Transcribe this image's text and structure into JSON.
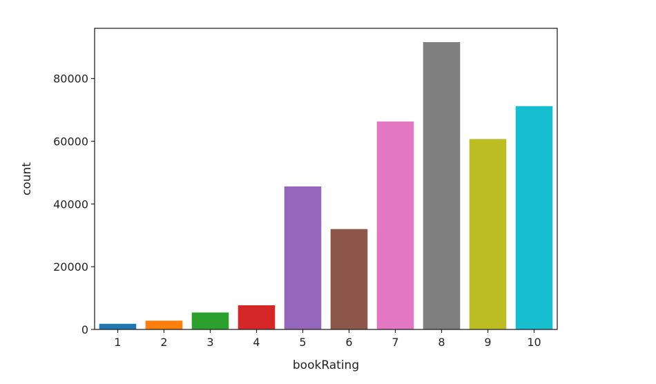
{
  "chart_data": {
    "type": "bar",
    "categories": [
      "1",
      "2",
      "3",
      "4",
      "5",
      "6",
      "7",
      "8",
      "9",
      "10"
    ],
    "values": [
      1800,
      2800,
      5400,
      7700,
      45600,
      32000,
      66300,
      91600,
      60700,
      71200
    ],
    "colors": [
      "#1f77b4",
      "#ff7f0e",
      "#2ca02c",
      "#d62728",
      "#9467bd",
      "#8c564b",
      "#e377c2",
      "#7f7f7f",
      "#bcbd22",
      "#17becf"
    ],
    "xlabel": "bookRating",
    "ylabel": "count",
    "yticks": [
      0,
      20000,
      40000,
      60000,
      80000
    ],
    "ytick_labels": [
      "0",
      "20000",
      "40000",
      "60000",
      "80000"
    ],
    "ylim": [
      0,
      96000
    ],
    "grid": false
  }
}
